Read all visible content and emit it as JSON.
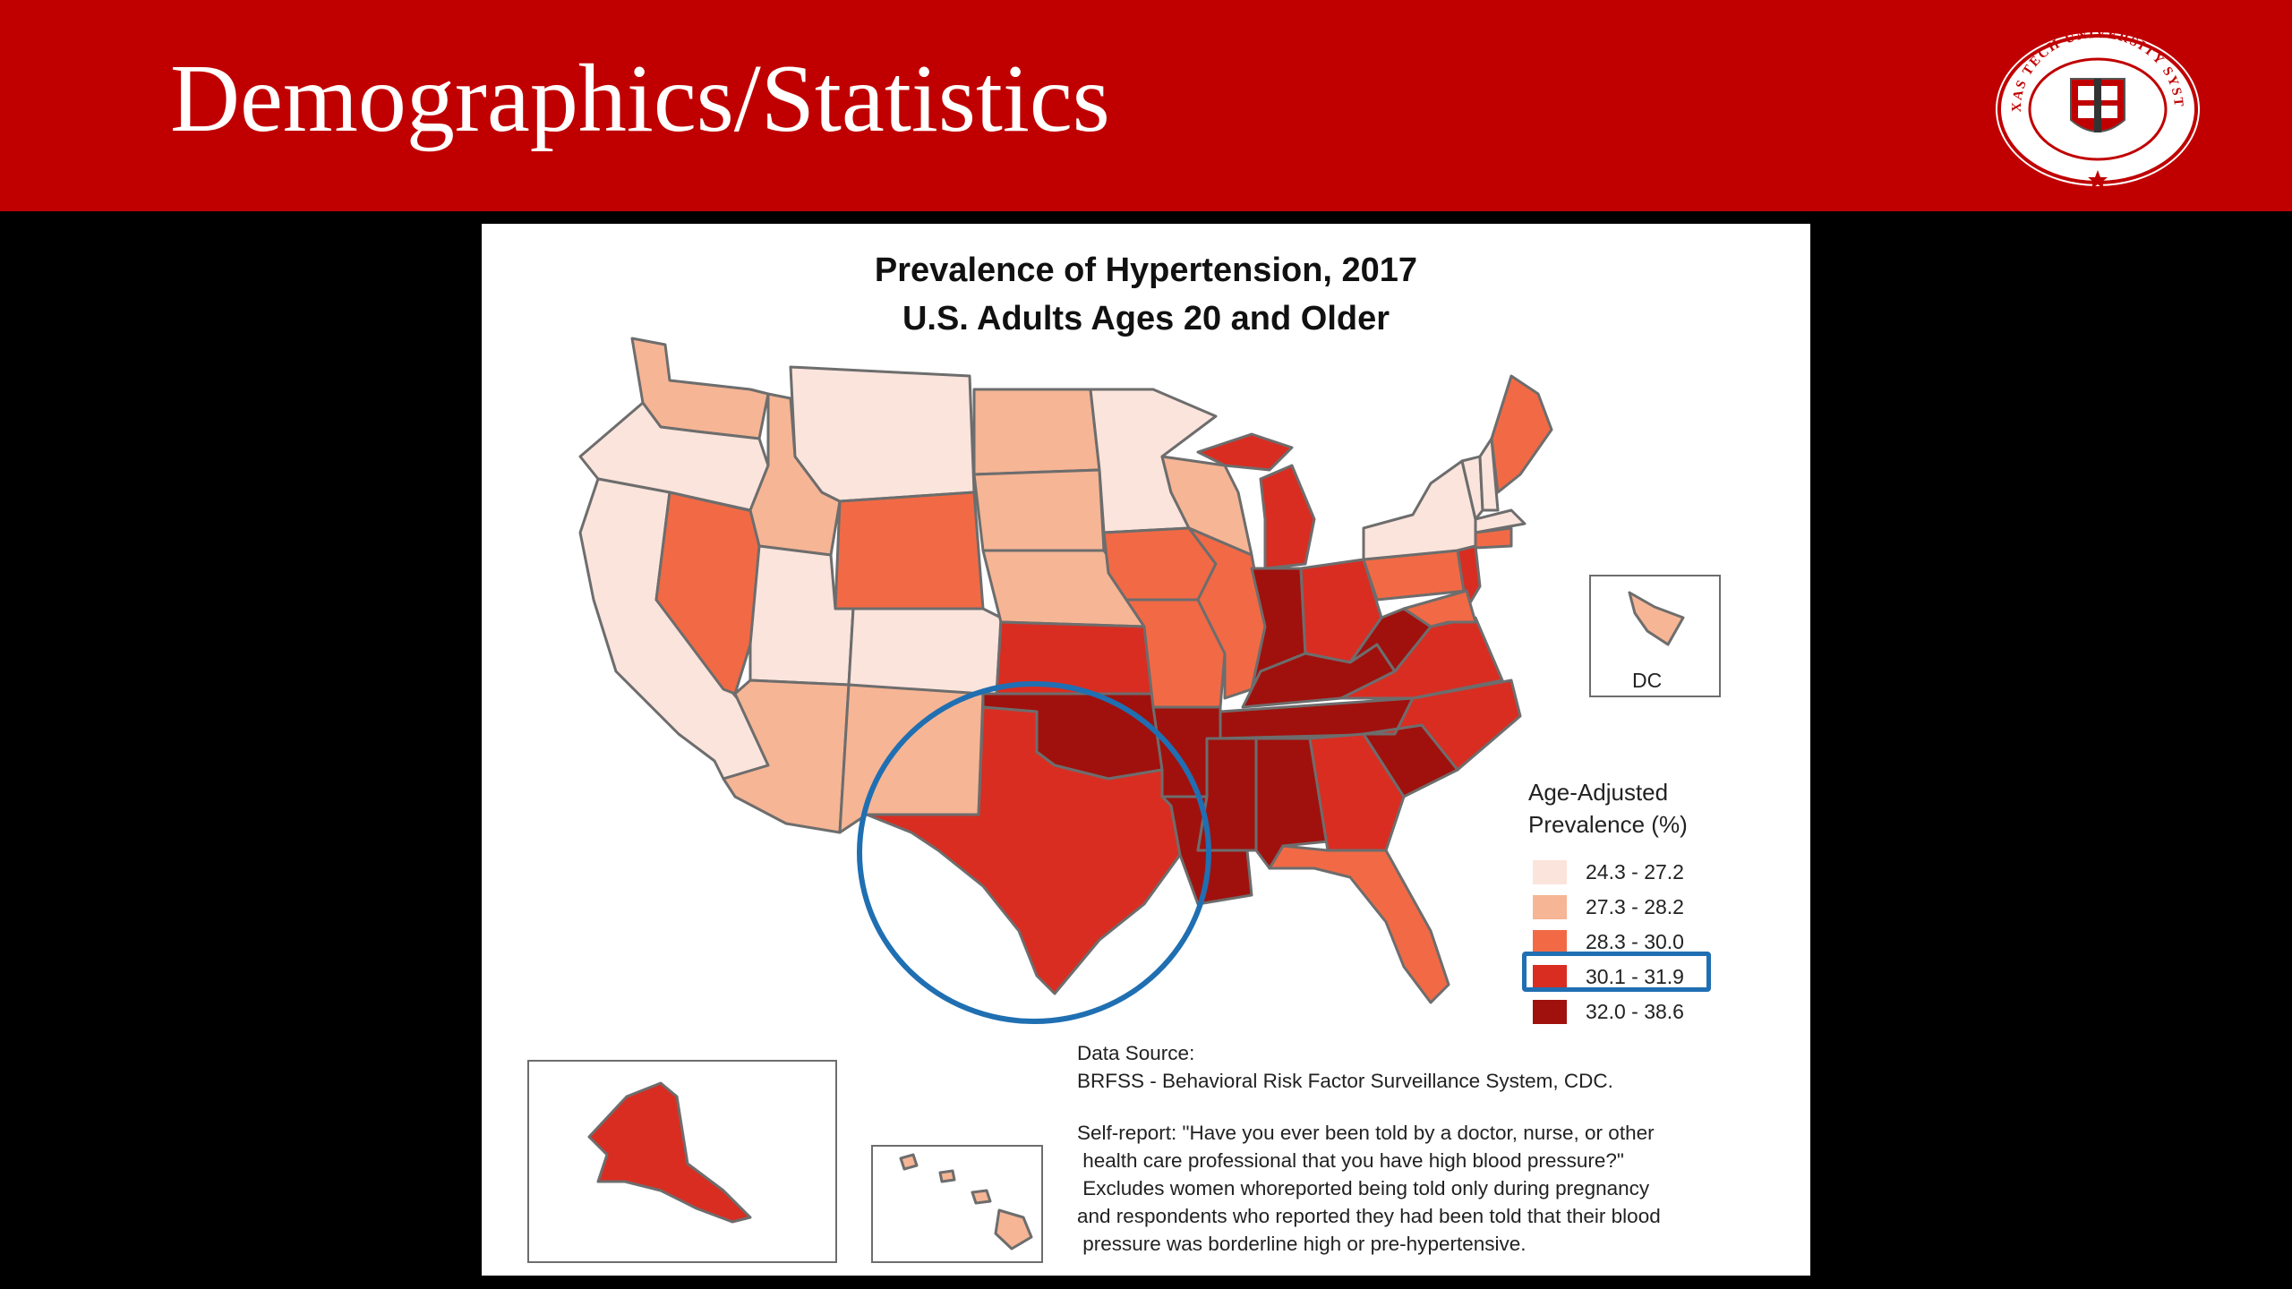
{
  "slide": {
    "title": "Demographics/Statistics",
    "colors": {
      "header": "#c00000",
      "background": "#000000",
      "highlight": "#1f6fb2"
    }
  },
  "logo": {
    "ring_text": "TEXAS TECH UNIVERSITY SYSTEM",
    "icon": "texas-tech-university-system-seal"
  },
  "map": {
    "title": "Prevalence of Hypertension, 2017",
    "subtitle": "U.S. Adults Ages 20 and Older",
    "dc_label": "DC",
    "legend": {
      "title_line1": "Age-Adjusted",
      "title_line2": "Prevalence (%)",
      "items": [
        {
          "label": "24.3 - 27.2",
          "color": "#fbe4dc"
        },
        {
          "label": "27.3 - 28.2",
          "color": "#f6b595"
        },
        {
          "label": "28.3 - 30.0",
          "color": "#f16a45"
        },
        {
          "label": "30.1 - 31.9",
          "color": "#d92d22"
        },
        {
          "label": "32.0 - 38.6",
          "color": "#a0110d"
        }
      ],
      "highlighted_item": "30.1 - 31.9"
    },
    "highlighted_region": "Texas",
    "source": {
      "line1": "Data Source:",
      "line2": "BRFSS - Behavioral Risk Factor Surveillance System, CDC."
    },
    "note": {
      "line1": "Self-report: \"Have you ever been told by a doctor, nurse, or other",
      "line2": " health care professional that you have high blood pressure?\"",
      "line3": " Excludes women whoreported being told only during pregnancy",
      "line4": "and respondents who reported they had been told that their blood",
      "line5": " pressure was borderline high or pre-hypertensive."
    }
  }
}
